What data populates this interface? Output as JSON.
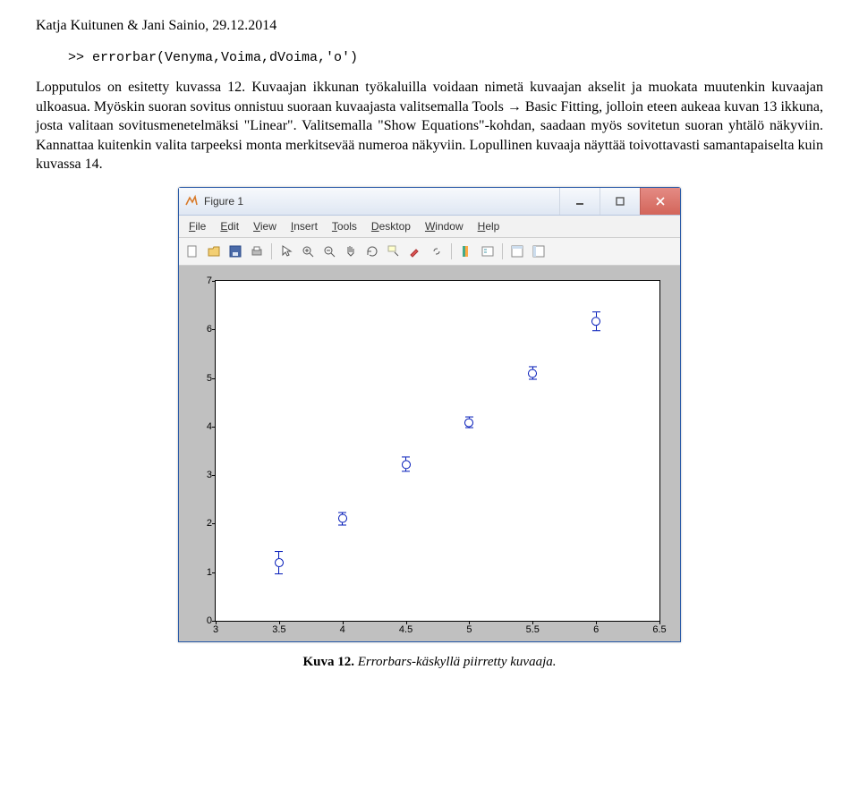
{
  "header": "Katja Kuitunen & Jani Sainio, 29.12.2014",
  "code": ">> errorbar(Venyma,Voima,dVoima,'o')",
  "para1": "Lopputulos on esitetty kuvassa 12. Kuvaajan ikkunan työkaluilla voidaan nimetä kuvaajan akselit ja muokata muutenkin kuvaajan ulkoasua. Myöskin suoran sovitus onnistuu suoraan kuvaajasta valitsemalla Tools → Basic Fitting, jolloin eteen aukeaa kuvan 13 ikkuna, josta valitaan sovitusmenetelmäksi \"Linear\". Valitsemalla \"Show Equations\"-kohdan, saadaan myös sovitetun suoran yhtälö näkyviin. Kannattaa kuitenkin valita tarpeeksi monta merkitsevää numeroa näkyviin. Lopullinen kuvaaja näyttää toivottavasti samantapaiselta kuin kuvassa 14.",
  "fig": {
    "title": "Figure 1",
    "menus": [
      "File",
      "Edit",
      "View",
      "Insert",
      "Tools",
      "Desktop",
      "Window",
      "Help"
    ],
    "plot": {
      "xlim": [
        3,
        6.5
      ],
      "ylim": [
        0,
        7
      ],
      "xticks": [
        3,
        3.5,
        4,
        4.5,
        5,
        5.5,
        6,
        6.5
      ],
      "yticks": [
        0,
        1,
        2,
        3,
        4,
        5,
        6,
        7
      ],
      "points": [
        {
          "x": 3.5,
          "y": 1.0,
          "e": 0.22
        },
        {
          "x": 4.0,
          "y": 2.0,
          "e": 0.12
        },
        {
          "x": 4.5,
          "y": 3.1,
          "e": 0.14
        },
        {
          "x": 5.0,
          "y": 4.0,
          "e": 0.1
        },
        {
          "x": 5.5,
          "y": 5.0,
          "e": 0.12
        },
        {
          "x": 6.0,
          "y": 6.0,
          "e": 0.18
        }
      ],
      "marker_color": "#0018b8",
      "background": "#ffffff",
      "window_bg": "#c0c0c0"
    }
  },
  "caption_bold": "Kuva 12.",
  "caption_italic": " Errorbars-käskyllä piirretty kuvaaja."
}
